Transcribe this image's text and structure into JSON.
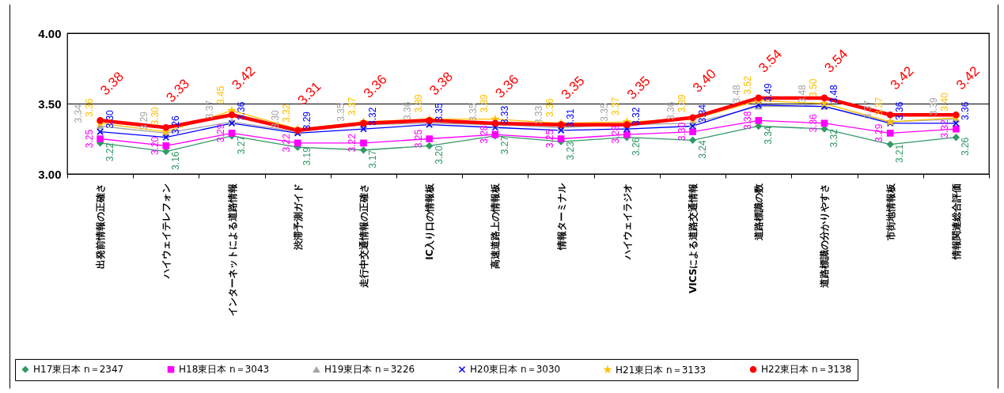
{
  "chart_data": {
    "type": "line",
    "categories": [
      "出発前情報の正確さ",
      "ハイウェイテレフォン",
      "インターネットによる道路情報",
      "渋滞予測ガイド",
      "走行中交通情報の正確さ",
      "IC入り口の情報板",
      "高速道路上の情報板",
      "情報ターミナル",
      "ハイウェイラジオ",
      "VICSによる道路交通情報",
      "道路標識の数",
      "道路標識の分かりやすさ",
      "市街地情報板",
      "情報関連総合評価"
    ],
    "ylim": [
      3,
      4
    ],
    "yticks": [
      {
        "value": 3,
        "label": "3.00"
      },
      {
        "value": 3.5,
        "label": "3.50"
      },
      {
        "value": 4,
        "label": "4.00"
      }
    ],
    "grid": "y",
    "legend": "bottom",
    "series": [
      {
        "name": "H17東日本 n＝2347",
        "color": "#339966",
        "marker": "diamond",
        "values": [
          3.22,
          3.16,
          3.27,
          3.19,
          3.17,
          3.2,
          3.27,
          3.23,
          3.26,
          3.24,
          3.34,
          3.32,
          3.21,
          3.26
        ],
        "value_labels": [
          "3.22",
          "3.16",
          "3.27",
          "3.19",
          "3.17",
          "3.20",
          "3.27",
          "3.23",
          "3.26",
          "3.24",
          "3.34",
          "3.32",
          "3.21",
          "3.26"
        ]
      },
      {
        "name": "H18東日本 n＝3043",
        "color": "#ff00ff",
        "marker": "square",
        "values": [
          3.25,
          3.2,
          3.29,
          3.22,
          3.22,
          3.25,
          3.28,
          3.25,
          3.28,
          3.3,
          3.38,
          3.36,
          3.29,
          3.32
        ],
        "value_labels": [
          "3.25",
          "3.20",
          "3.29",
          "3.22",
          "3.22",
          "3.25",
          "3.28",
          "3.25",
          "3.28",
          "3.30",
          "3.38",
          "3.36",
          "3.29",
          "3.32"
        ]
      },
      {
        "name": "H19東日本 n＝3226",
        "color": "#a6a6a6",
        "marker": "triangle",
        "values": [
          3.34,
          3.29,
          3.37,
          3.3,
          3.35,
          3.36,
          3.35,
          3.33,
          3.35,
          3.36,
          3.48,
          3.48,
          3.37,
          3.39
        ],
        "value_labels": [
          "3.34",
          "3.29",
          "3.37",
          "3.30",
          "3.35",
          "3.36",
          "3.35",
          "3.33",
          "3.35",
          "3.36",
          "3.48",
          "3.48",
          "3.37",
          "3.39"
        ]
      },
      {
        "name": "H20東日本 n＝3030",
        "color": "#0000ff",
        "marker": "cross",
        "values": [
          3.3,
          3.26,
          3.36,
          3.29,
          3.32,
          3.35,
          3.33,
          3.31,
          3.32,
          3.34,
          3.49,
          3.48,
          3.36,
          3.36
        ],
        "value_labels": [
          "3.30",
          "3.26",
          "3.36",
          "3.29",
          "3.32",
          "3.35",
          "3.33",
          "3.31",
          "3.32",
          "3.34",
          "3.49",
          "3.48",
          "3.36",
          "3.36"
        ]
      },
      {
        "name": "H21東日本 n＝3133",
        "color": "#ffc000",
        "marker": "star",
        "values": [
          3.36,
          3.3,
          3.45,
          3.32,
          3.37,
          3.39,
          3.39,
          3.36,
          3.37,
          3.39,
          3.52,
          3.5,
          3.37,
          3.4
        ],
        "value_labels": [
          "3.36",
          "3.30",
          "3.45",
          "3.32",
          "3.37",
          "3.39",
          "3.39",
          "3.36",
          "3.37",
          "3.39",
          "3.52",
          "3.50",
          "3.37",
          "3.40"
        ]
      },
      {
        "name": "H22東日本 n＝3138",
        "color": "#ff0000",
        "marker": "circle",
        "values": [
          3.38,
          3.33,
          3.42,
          3.31,
          3.36,
          3.38,
          3.36,
          3.35,
          3.35,
          3.4,
          3.54,
          3.54,
          3.42,
          3.42
        ],
        "value_labels": [
          "3.38",
          "3.33",
          "3.42",
          "3.31",
          "3.36",
          "3.38",
          "3.36",
          "3.35",
          "3.35",
          "3.40",
          "3.54",
          "3.54",
          "3.42",
          "3.42"
        ]
      }
    ]
  }
}
